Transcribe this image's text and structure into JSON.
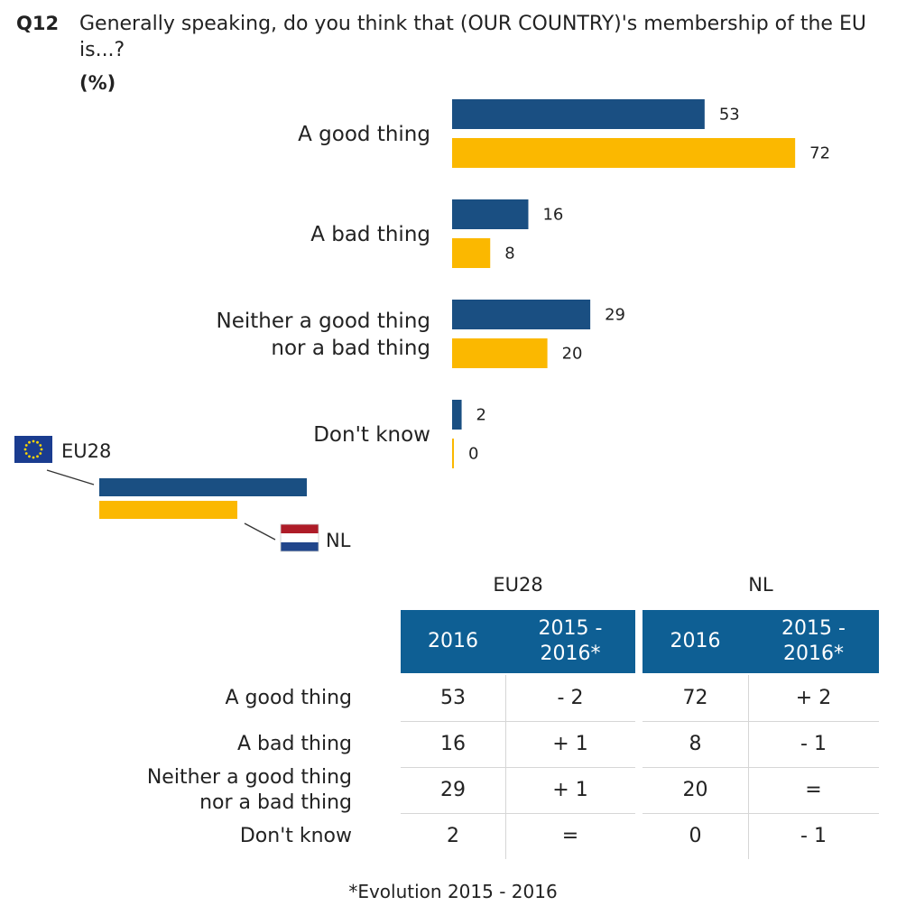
{
  "question": {
    "code": "Q12",
    "text": "Generally speaking, do you think that (OUR COUNTRY)'s membership of the EU is...?",
    "unit": "(%)"
  },
  "colors": {
    "eu28": "#1a4f82",
    "nl": "#fbb800",
    "table_header": "#0e5f94"
  },
  "chart_data": {
    "type": "bar",
    "orientation": "horizontal",
    "categories": [
      "A good thing",
      "A bad thing",
      "Neither a good thing nor a bad thing",
      "Don't know"
    ],
    "category_lines": [
      [
        "A good thing"
      ],
      [
        "A bad thing"
      ],
      [
        "Neither a good thing",
        "nor a bad thing"
      ],
      [
        "Don't know"
      ]
    ],
    "series": [
      {
        "name": "EU28",
        "values": [
          53,
          16,
          29,
          2
        ]
      },
      {
        "name": "NL",
        "values": [
          72,
          8,
          20,
          0
        ]
      }
    ],
    "xlim": [
      0,
      100
    ]
  },
  "legend": {
    "eu28_label": "EU28",
    "nl_label": "NL",
    "eu28_icon": "eu-flag-icon",
    "nl_icon": "nl-flag-icon"
  },
  "table": {
    "groups": [
      "EU28",
      "NL"
    ],
    "headers": [
      [
        "2016"
      ],
      [
        "2015 -",
        "2016*"
      ],
      [
        "2016"
      ],
      [
        "2015 -",
        "2016*"
      ]
    ],
    "rows": [
      {
        "label": [
          "A good thing"
        ],
        "cells": [
          "53",
          "- 2",
          "72",
          "+ 2"
        ]
      },
      {
        "label": [
          "A bad thing"
        ],
        "cells": [
          "16",
          "+ 1",
          "8",
          "- 1"
        ]
      },
      {
        "label": [
          "Neither a good thing",
          "nor a bad thing"
        ],
        "cells": [
          "29",
          "+ 1",
          "20",
          "="
        ]
      },
      {
        "label": [
          "Don't know"
        ],
        "cells": [
          "2",
          "=",
          "0",
          "- 1"
        ]
      }
    ]
  },
  "footnote": "*Evolution 2015 - 2016"
}
